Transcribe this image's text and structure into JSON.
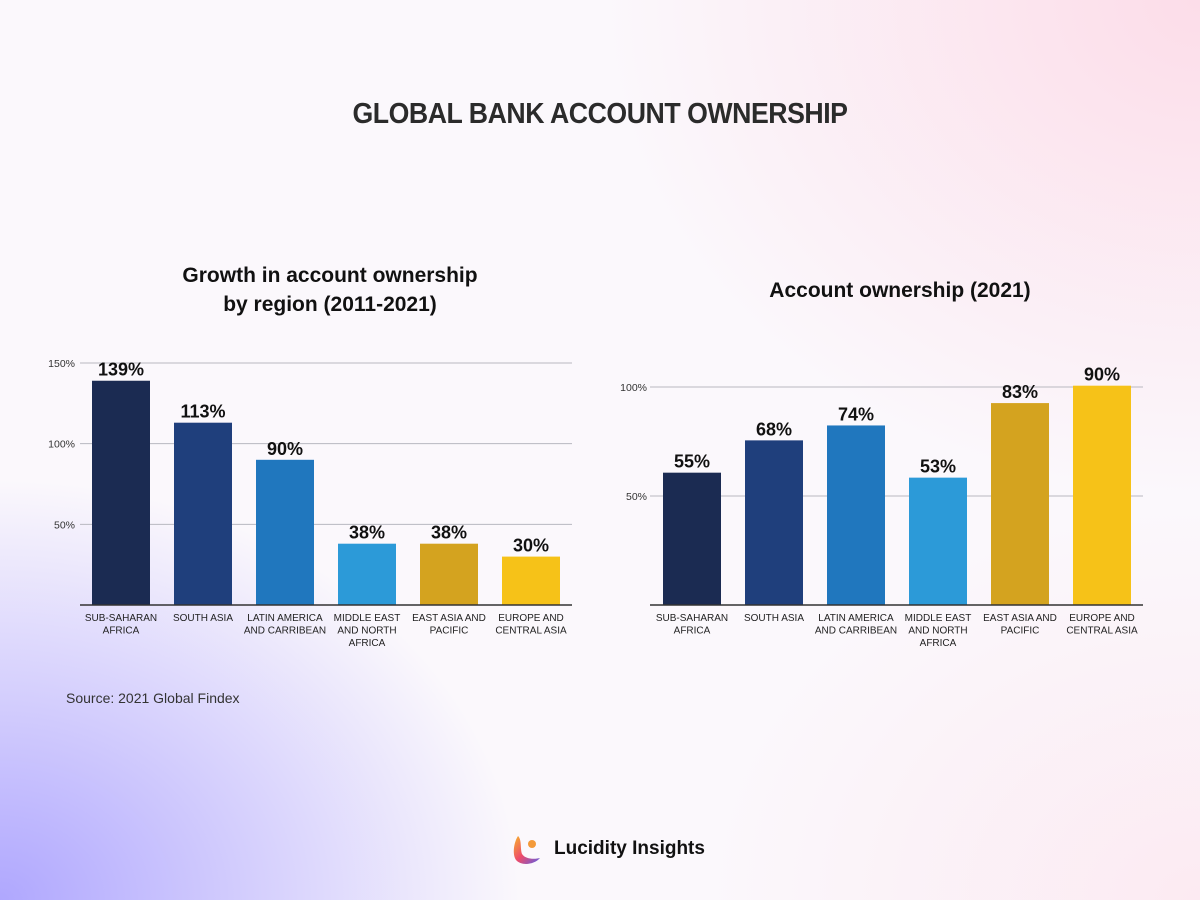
{
  "title": "GLOBAL BANK ACCOUNT OWNERSHIP",
  "source": "Source: 2021 Global Findex",
  "brand": "Lucidity Insights",
  "colors": [
    "#1b2b52",
    "#1f3f7c",
    "#2077be",
    "#2c9ad8",
    "#d4a31f",
    "#f6c218"
  ],
  "chart_data": [
    {
      "type": "bar",
      "title": "Growth in account ownership by region (2011-2021)",
      "title_lines": [
        "Growth in account ownership",
        "by region (2011-2021)"
      ],
      "categories": [
        [
          "SUB-SAHARAN",
          "AFRICA"
        ],
        [
          "SOUTH ASIA"
        ],
        [
          "LATIN AMERICA",
          "AND CARRIBEAN"
        ],
        [
          "MIDDLE EAST",
          "AND NORTH",
          "AFRICA"
        ],
        [
          "EAST ASIA AND",
          "PACIFIC"
        ],
        [
          "EUROPE AND",
          "CENTRAL ASIA"
        ]
      ],
      "values": [
        139,
        113,
        90,
        38,
        38,
        30
      ],
      "labels": [
        "139%",
        "113%",
        "90%",
        "38%",
        "38%",
        "30%"
      ],
      "yticks": [
        50,
        100,
        150
      ],
      "ytick_labels": [
        "50%",
        "100%",
        "150%"
      ],
      "ylim": [
        0,
        150
      ],
      "grid": true
    },
    {
      "type": "bar",
      "title": "Account ownership (2021)",
      "title_lines": [
        "Account ownership (2021)"
      ],
      "categories": [
        [
          "SUB-SAHARAN",
          "AFRICA"
        ],
        [
          "SOUTH ASIA"
        ],
        [
          "LATIN AMERICA",
          "AND CARRIBEAN"
        ],
        [
          "MIDDLE EAST",
          "AND NORTH",
          "AFRICA"
        ],
        [
          "EAST ASIA AND",
          "PACIFIC"
        ],
        [
          "EUROPE AND",
          "CENTRAL ASIA"
        ]
      ],
      "values": [
        55,
        68,
        74,
        53,
        83,
        90
      ],
      "labels": [
        "55%",
        "68%",
        "74%",
        "53%",
        "83%",
        "90%"
      ],
      "yticks": [
        50,
        100
      ],
      "ytick_labels": [
        "50%",
        "100%"
      ],
      "ylim": [
        0,
        100
      ],
      "grid": true
    }
  ]
}
